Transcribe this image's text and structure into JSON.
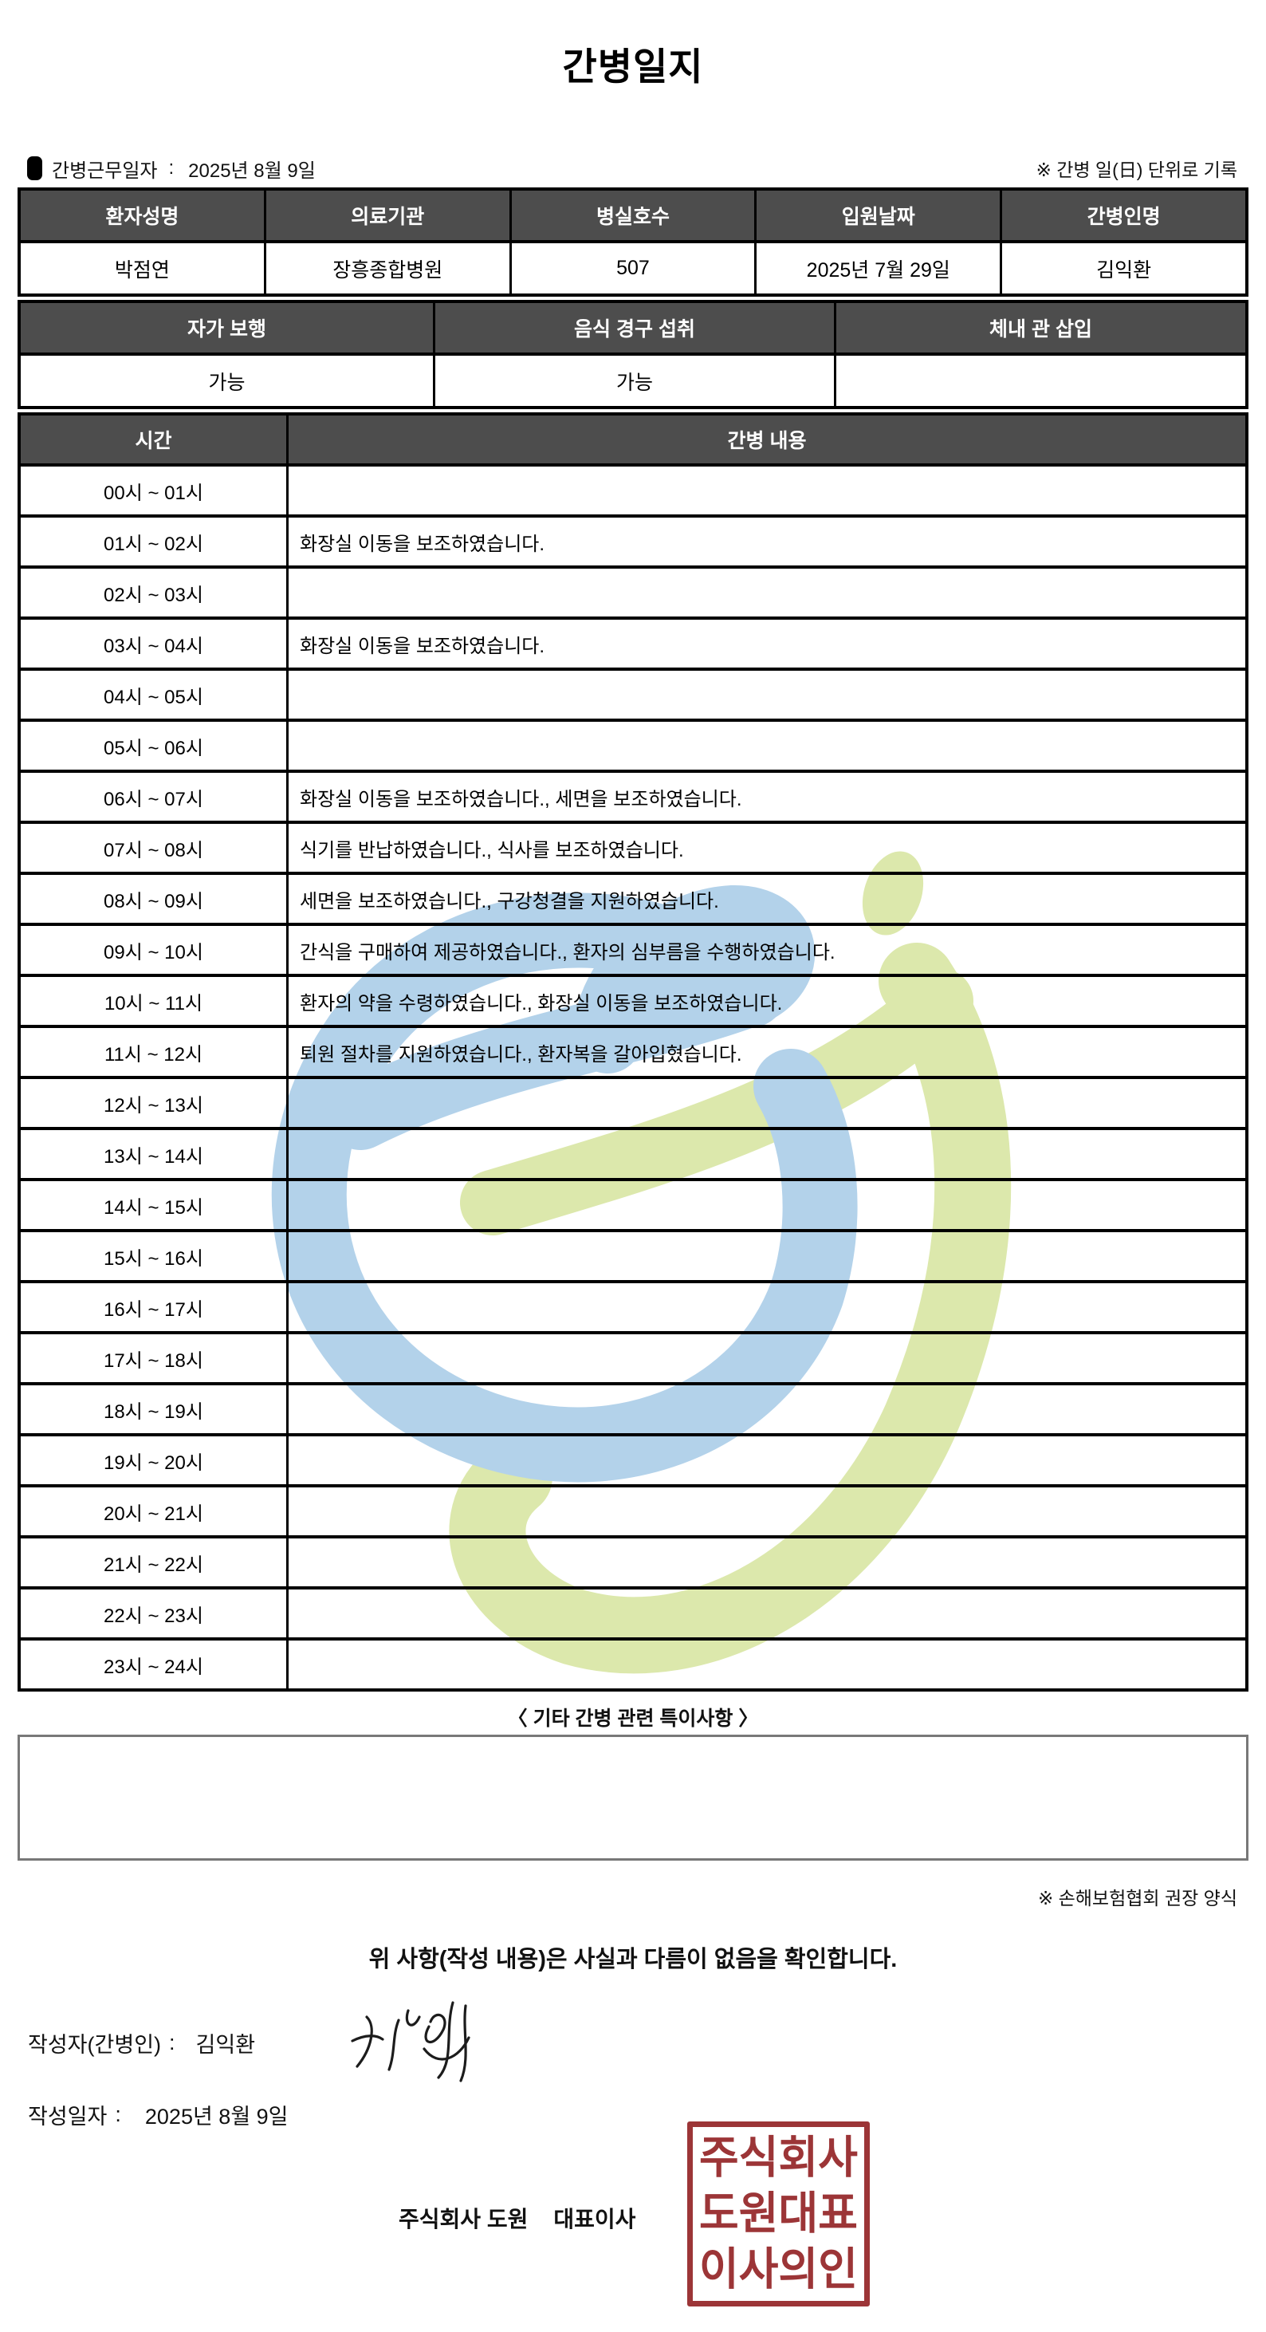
{
  "title": "간병일지",
  "meta": {
    "work_date_label": "간병근무일자",
    "separator": ":",
    "work_date_value": "2025년 8월 9일",
    "unit_note": "※ 간병 일(日) 단위로 기록"
  },
  "patient_table": {
    "headers": [
      "환자성명",
      "의료기관",
      "병실호수",
      "입원날짜",
      "간병인명"
    ],
    "values": [
      "박점연",
      "장흥종합병원",
      "507",
      "2025년 7월 29일",
      "김익환"
    ]
  },
  "status_table": {
    "headers": [
      "자가 보행",
      "음식 경구 섭취",
      "체내 관 삽입"
    ],
    "values": [
      "가능",
      "가능",
      ""
    ]
  },
  "care_table": {
    "time_header": "시간",
    "content_header": "간병 내용",
    "rows": [
      {
        "time": "00시 ~ 01시",
        "content": ""
      },
      {
        "time": "01시 ~ 02시",
        "content": "화장실 이동을 보조하였습니다."
      },
      {
        "time": "02시 ~ 03시",
        "content": ""
      },
      {
        "time": "03시 ~ 04시",
        "content": "화장실 이동을 보조하였습니다."
      },
      {
        "time": "04시 ~ 05시",
        "content": ""
      },
      {
        "time": "05시 ~ 06시",
        "content": ""
      },
      {
        "time": "06시 ~ 07시",
        "content": "화장실 이동을 보조하였습니다., 세면을 보조하였습니다."
      },
      {
        "time": "07시 ~ 08시",
        "content": "식기를 반납하였습니다., 식사를 보조하였습니다."
      },
      {
        "time": "08시 ~ 09시",
        "content": "세면을 보조하였습니다., 구강청결을 지원하였습니다."
      },
      {
        "time": "09시 ~ 10시",
        "content": "간식을 구매하여 제공하였습니다., 환자의 심부름을 수행하였습니다."
      },
      {
        "time": "10시 ~ 11시",
        "content": "환자의 약을 수령하였습니다., 화장실 이동을 보조하였습니다."
      },
      {
        "time": "11시 ~ 12시",
        "content": "퇴원 절차를 지원하였습니다., 환자복을 갈아입혔습니다."
      },
      {
        "time": "12시 ~ 13시",
        "content": ""
      },
      {
        "time": "13시 ~ 14시",
        "content": ""
      },
      {
        "time": "14시 ~ 15시",
        "content": ""
      },
      {
        "time": "15시 ~ 16시",
        "content": ""
      },
      {
        "time": "16시 ~ 17시",
        "content": ""
      },
      {
        "time": "17시 ~ 18시",
        "content": ""
      },
      {
        "time": "18시 ~ 19시",
        "content": ""
      },
      {
        "time": "19시 ~ 20시",
        "content": ""
      },
      {
        "time": "20시 ~ 21시",
        "content": ""
      },
      {
        "time": "21시 ~ 22시",
        "content": ""
      },
      {
        "time": "22시 ~ 23시",
        "content": ""
      },
      {
        "time": "23시 ~ 24시",
        "content": ""
      }
    ]
  },
  "notes": {
    "heading": "〈 기타 간병 관련 특이사항 〉",
    "content": "",
    "form_note": "※ 손해보험협회 권장 양식"
  },
  "confirmation": {
    "statement": "위 사항(작성 내용)은 사실과 다름이 없음을 확인합니다.",
    "writer_label": "작성자(간병인)",
    "separator": ":",
    "writer_name": "김익환",
    "date_label": "작성일자",
    "date_value": "2025년 8월 9일",
    "company_name": "주식회사 도원",
    "ceo_label": "대표이사",
    "stamp_lines": [
      "주식회사",
      "도원대표",
      "이사의인"
    ]
  },
  "colors": {
    "header_bg": "#4d4d4d",
    "header_text": "#ffffff",
    "table_border": "#000000",
    "notes_box_border": "#787878",
    "stamp_red": "#9c3537",
    "watermark_blue": "#b3d2ea",
    "watermark_green": "#dce8ac"
  }
}
